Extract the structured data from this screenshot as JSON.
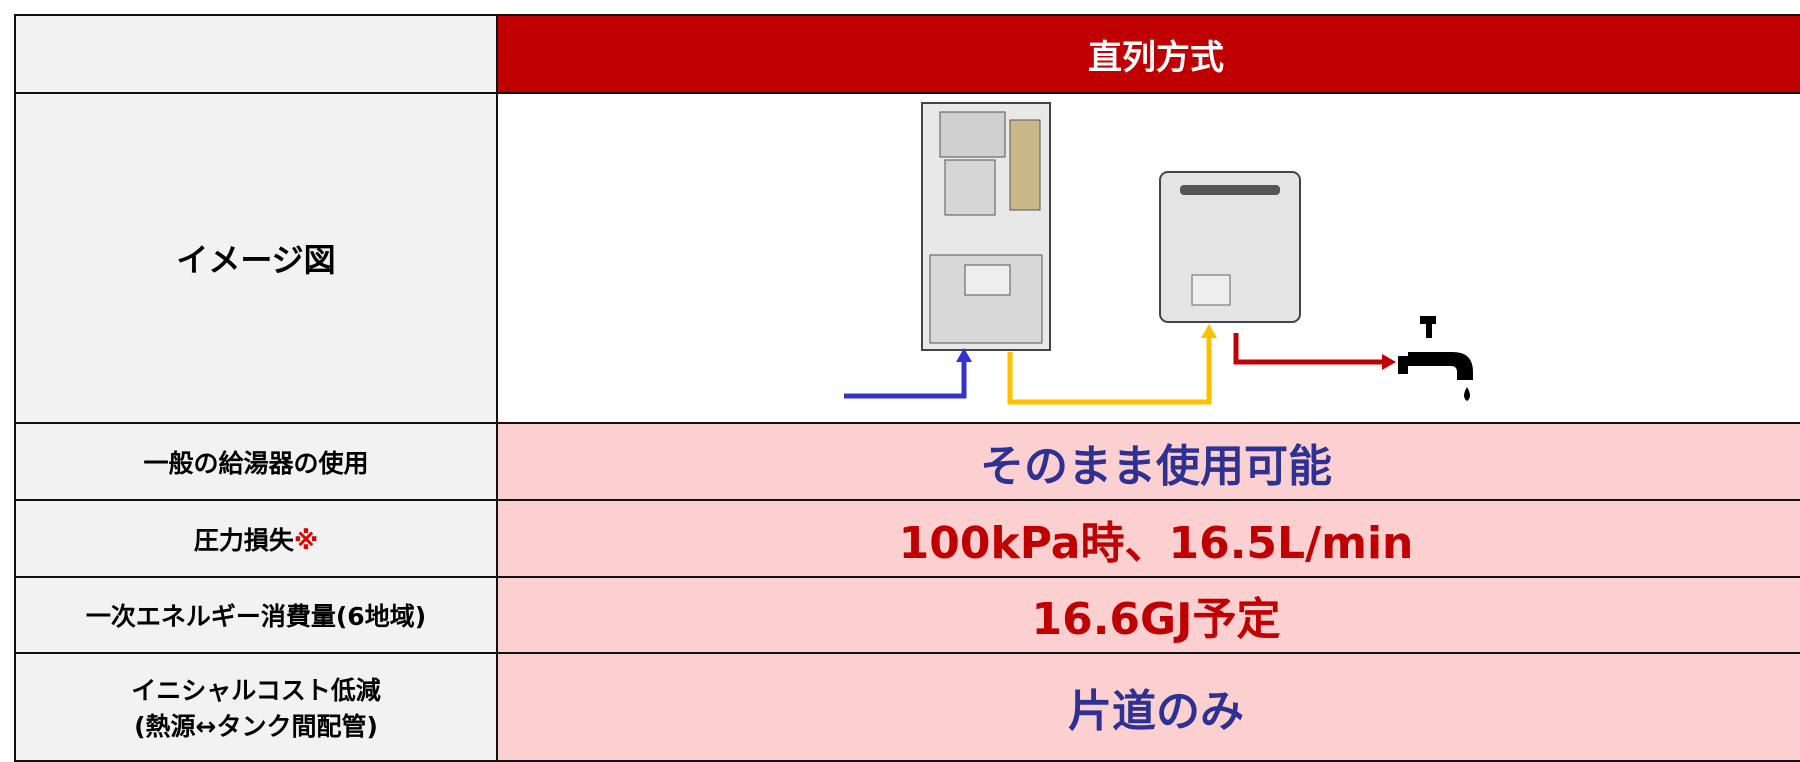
{
  "header": {
    "title": "直列方式"
  },
  "rows": [
    {
      "label": "イメージ図"
    },
    {
      "label": "一般の給湯器の使用",
      "value": "そのまま使用可能"
    },
    {
      "label": "圧力損失",
      "mark": "※",
      "value": "100kPa時、16.5L/min"
    },
    {
      "label": "一次エネルギー消費量(6地域)",
      "value": "16.6GJ予定"
    },
    {
      "label": "イニシャルコスト低減",
      "label2": "(熱源↔タンク間配管)",
      "value": "片道のみ"
    }
  ]
}
